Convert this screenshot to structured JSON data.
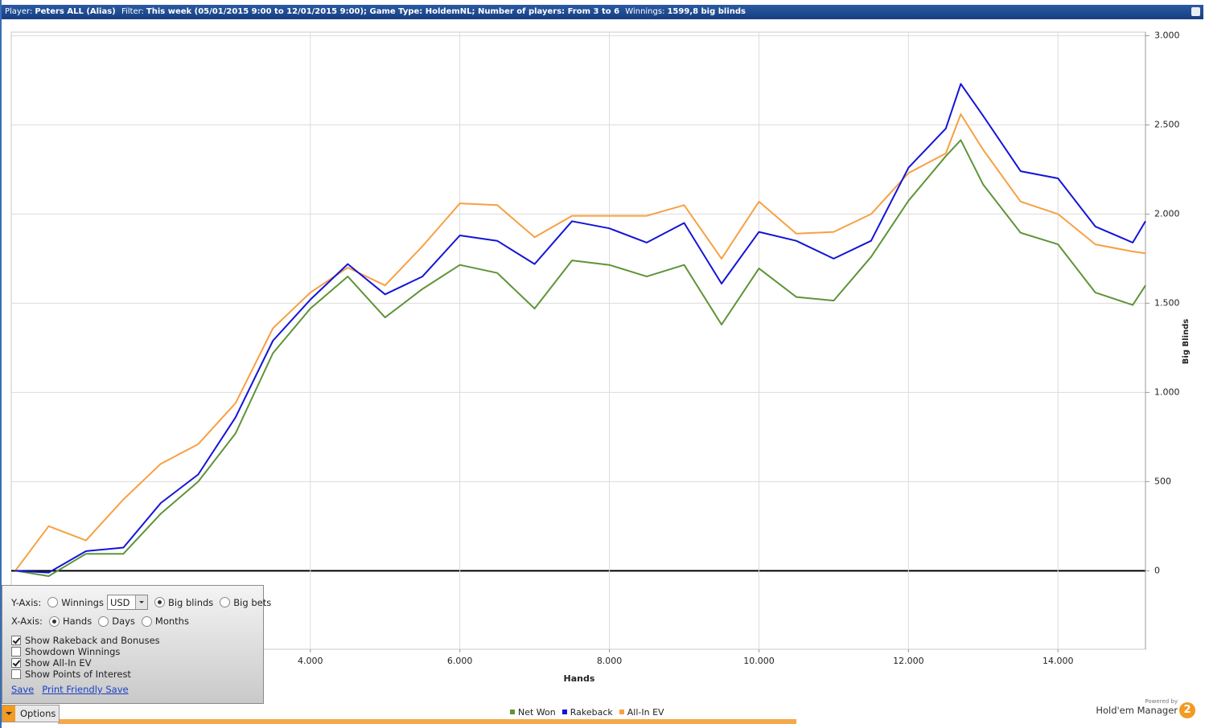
{
  "header": {
    "items": [
      {
        "label": "Player:",
        "value": "Peters ALL (Alias)"
      },
      {
        "label": "Filter:",
        "value": "This week (05/01/2015 9:00 to 12/01/2015 9:00); Game Type: HoldemNL; Number of players: From 3 to 6"
      },
      {
        "label": "Winnings:",
        "value": "1599,8 big blinds"
      }
    ]
  },
  "chart_data": {
    "type": "line",
    "x_label": "Hands",
    "y_label": "Big Blinds",
    "x": [
      54,
      500,
      1000,
      1500,
      2000,
      2500,
      3000,
      3500,
      4000,
      4500,
      5000,
      5500,
      6000,
      6500,
      7000,
      7500,
      8000,
      8500,
      9000,
      9500,
      10000,
      10500,
      11000,
      11500,
      12000,
      12500,
      12700,
      13000,
      13500,
      14000,
      14500,
      15000,
      15170
    ],
    "series": [
      {
        "name": "All-In EV",
        "color": "#f7a043",
        "values": [
          0,
          250,
          170,
          400,
          600,
          710,
          940,
          1360,
          1560,
          1700,
          1600,
          1820,
          2060,
          2050,
          1870,
          1990,
          1990,
          1990,
          2050,
          1750,
          2070,
          1890,
          1900,
          2000,
          2230,
          2340,
          2560,
          2360,
          2070,
          2000,
          1830,
          1790,
          1780
        ]
      },
      {
        "name": "Net Won",
        "color": "#5e9438",
        "values": [
          0,
          -30,
          95,
          95,
          320,
          500,
          770,
          1220,
          1470,
          1650,
          1420,
          1580,
          1715,
          1670,
          1470,
          1740,
          1715,
          1650,
          1715,
          1380,
          1695,
          1535,
          1515,
          1760,
          2075,
          2325,
          2415,
          2165,
          1895,
          1830,
          1560,
          1490,
          1600
        ]
      },
      {
        "name": "Rakeback",
        "color": "#1414d8",
        "values": [
          0,
          -10,
          110,
          130,
          380,
          540,
          860,
          1290,
          1520,
          1720,
          1550,
          1650,
          1880,
          1850,
          1720,
          1960,
          1920,
          1840,
          1950,
          1610,
          1900,
          1850,
          1750,
          1850,
          2260,
          2480,
          2730,
          2550,
          2240,
          2200,
          1930,
          1840,
          1960
        ]
      }
    ],
    "legend_order": [
      1,
      2,
      0
    ],
    "xlim": [
      0,
      15170
    ],
    "ylim": [
      -440,
      3020
    ],
    "xticks": [
      {
        "value": 4000,
        "label": "4.000"
      },
      {
        "value": 6000,
        "label": "6.000"
      },
      {
        "value": 8000,
        "label": "8.000"
      },
      {
        "value": 10000,
        "label": "10.000"
      },
      {
        "value": 12000,
        "label": "12.000"
      },
      {
        "value": 14000,
        "label": "14.000"
      }
    ],
    "yticks": [
      0,
      500,
      {
        "value": 1000,
        "label": "1.000"
      },
      {
        "value": 1500,
        "label": "1.500"
      },
      {
        "value": 2000,
        "label": "2.000"
      },
      {
        "value": 2500,
        "label": "2.500"
      },
      {
        "value": 3000,
        "label": "3.000"
      }
    ],
    "grid": true
  },
  "options": {
    "y_axis": {
      "label": "Y-Axis:",
      "choices": [
        {
          "text": "Winnings",
          "checked": false
        },
        {
          "text": "Big blinds",
          "checked": true
        },
        {
          "text": "Big bets",
          "checked": false
        }
      ],
      "currency": "USD"
    },
    "x_axis": {
      "label": "X-Axis:",
      "choices": [
        {
          "text": "Hands",
          "checked": true
        },
        {
          "text": "Days",
          "checked": false
        },
        {
          "text": "Months",
          "checked": false
        }
      ]
    },
    "checkboxes": [
      {
        "text": "Show Rakeback and Bonuses",
        "checked": true
      },
      {
        "text": "Showdown Winnings",
        "checked": false
      },
      {
        "text": "Show All-In EV",
        "checked": true
      },
      {
        "text": "Show Points of Interest",
        "checked": false
      }
    ],
    "links": [
      "Save",
      "Print Friendly Save"
    ],
    "tab": "Options"
  },
  "brand": {
    "powered": "Powered by",
    "name": "Hold'em Manager",
    "logo": "2"
  }
}
